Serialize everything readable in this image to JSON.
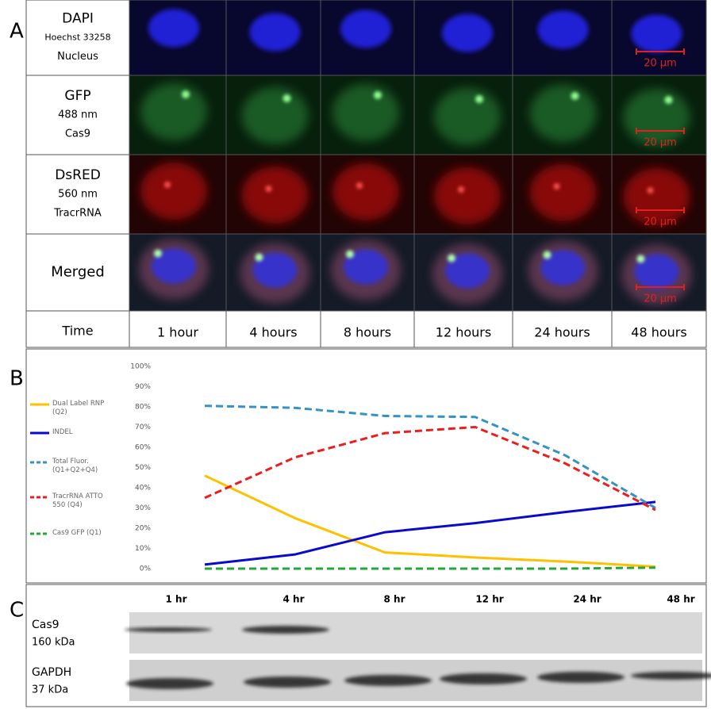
{
  "panel_a": {
    "label": "A",
    "rows": [
      {
        "lines": [
          "DAPI",
          "Hoechst 33258",
          "Nucleus"
        ]
      },
      {
        "lines": [
          "GFP",
          "488 nm",
          "Cas9"
        ]
      },
      {
        "lines": [
          "DsRED",
          "560 nm",
          "TracrRNA"
        ]
      },
      {
        "lines": [
          "Merged"
        ]
      }
    ],
    "scale_bar": "20 µm",
    "time_header": "Time",
    "times": [
      "1 hour",
      "4 hours",
      "8 hours",
      "12 hours",
      "24 hours",
      "48 hours"
    ]
  },
  "chart_data": {
    "type": "line",
    "panel_label": "B",
    "ylim": [
      0,
      100
    ],
    "yticks": [
      {
        "value": 0,
        "label": "0%"
      },
      {
        "value": 10,
        "label": "10%"
      },
      {
        "value": 20,
        "label": "20%"
      },
      {
        "value": 30,
        "label": "30%"
      },
      {
        "value": 40,
        "label": "40%"
      },
      {
        "value": 50,
        "label": "50%"
      },
      {
        "value": 60,
        "label": "60%"
      },
      {
        "value": 70,
        "label": "70%"
      },
      {
        "value": 80,
        "label": "80%"
      },
      {
        "value": 90,
        "label": "90%"
      },
      {
        "value": 100,
        "label": "100%"
      }
    ],
    "legend": "left",
    "series": [
      {
        "name": "Dual Label RNP (Q2)",
        "color": "#ffc000",
        "dashed": false,
        "values": [
          46,
          25,
          8,
          5.5,
          3.5,
          1
        ]
      },
      {
        "name": "INDEL",
        "color": "#0a0acc",
        "dashed": false,
        "values": [
          2,
          7,
          18,
          22.5,
          28,
          33
        ]
      },
      {
        "name": "Total Fluor. (Q1+Q2+Q4)",
        "color": "#3592c4",
        "dashed": true,
        "values": [
          80.5,
          79.5,
          75.5,
          75,
          56,
          30
        ]
      },
      {
        "name": "TracrRNA ATTO 550 (Q4)",
        "color": "#ee1c1c",
        "dashed": true,
        "values": [
          35,
          55,
          67,
          70,
          52,
          29
        ]
      },
      {
        "name": "Cas9 GFP (Q1)",
        "color": "#22a83a",
        "dashed": true,
        "values": [
          0,
          0,
          0,
          0,
          0,
          0.5
        ]
      }
    ]
  },
  "panel_c": {
    "label": "C",
    "times": [
      "1 hr",
      "4 hr",
      "8 hr",
      "12 hr",
      "24 hr",
      "48 hr"
    ],
    "blots": [
      {
        "protein": "Cas9",
        "size": "160 kDa"
      },
      {
        "protein": "GAPDH",
        "size": "37 kDa"
      }
    ]
  }
}
